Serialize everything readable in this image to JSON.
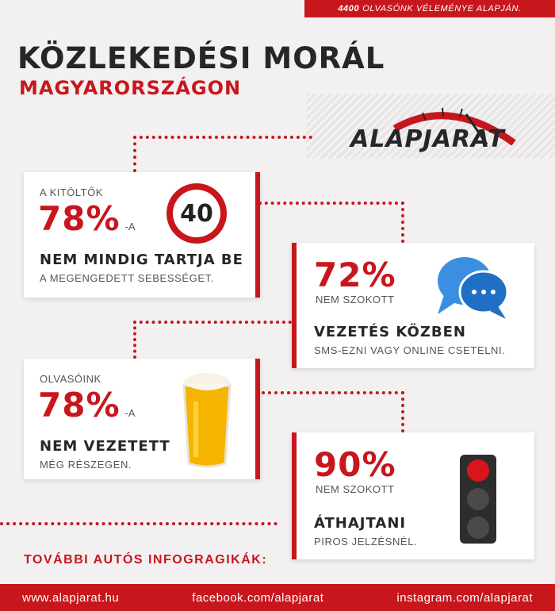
{
  "top_bar": {
    "count": "4400",
    "text": "OLVASÓNK VÉLEMÉNYE ALAPJÁN."
  },
  "title": {
    "line1": "KÖZLEKEDÉSI MORÁL",
    "line2": "MAGYARORSZÁGON"
  },
  "logo": {
    "text": "ALAPJARAT"
  },
  "colors": {
    "accent": "#c8161d",
    "dark": "#262626",
    "background": "#f2f0f0"
  },
  "cards": [
    {
      "intro": "A KITÖLTŐK",
      "percent": "78%",
      "suffix": "-A",
      "headline": "NEM MINDIG TARTJA BE",
      "detail": "A MEGENGEDETT SEBESSÉGET.",
      "icon": "speed-limit-40-sign-icon",
      "sign_value": "40"
    },
    {
      "percent": "72%",
      "intro": "NEM SZOKOTT",
      "headline": "VEZETÉS KÖZBEN",
      "detail": "SMS-EZNI VAGY ONLINE CSETELNI.",
      "icon": "chat-bubbles-icon"
    },
    {
      "intro": "Olvasóink",
      "percent": "78%",
      "suffix": "-A",
      "headline": "NEM VEZETETT",
      "detail": "MÉG RÉSZEGEN.",
      "icon": "beer-glass-icon"
    },
    {
      "percent": "90%",
      "intro": "NEM SZOKOTT",
      "headline": "ÁTHAJTANI",
      "detail": "PIROS JELZÉSNÉL.",
      "icon": "traffic-light-icon"
    }
  ],
  "footer": {
    "more_label": "TOVÁBBI AUTÓS INFOGRAGIKÁK:",
    "links": [
      "www.alapjarat.hu",
      "facebook.com/alapjarat",
      "instagram.com/alapjarat"
    ]
  }
}
